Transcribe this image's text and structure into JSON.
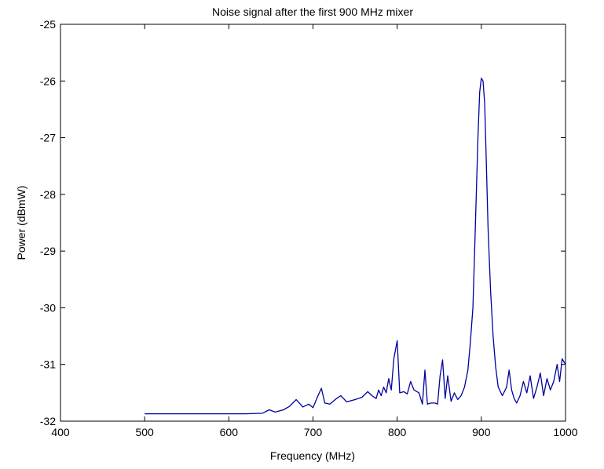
{
  "chart_data": {
    "type": "line",
    "title": "Noise signal after the first 900 MHz mixer",
    "xlabel": "Frequency (MHz)",
    "ylabel": "Power (dBmW)",
    "xlim": [
      400,
      1000
    ],
    "ylim": [
      -32,
      -25
    ],
    "xticks": [
      400,
      500,
      600,
      700,
      800,
      900,
      1000
    ],
    "yticks": [
      -32,
      -31,
      -30,
      -29,
      -28,
      -27,
      -26,
      -25
    ],
    "xtick_labels": [
      "400",
      "500",
      "600",
      "700",
      "800",
      "900",
      "1000"
    ],
    "ytick_labels": [
      "-32",
      "-31",
      "-30",
      "-29",
      "-28",
      "-27",
      "-26",
      "-25"
    ],
    "grid": false,
    "line_color": "#0000a0",
    "series": [
      {
        "x": [
          500,
          560,
          620,
          640,
          648,
          655,
          665,
          672,
          680,
          688,
          695,
          700,
          706,
          710,
          714,
          720,
          728,
          733,
          740,
          750,
          758,
          765,
          770,
          775,
          778,
          781,
          784,
          787,
          790,
          793,
          796,
          800,
          803,
          808,
          812,
          816,
          820,
          826,
          830,
          833,
          836,
          840,
          845,
          848,
          851,
          854,
          857,
          860,
          864,
          868,
          872,
          876,
          880,
          884,
          887,
          890,
          892,
          894,
          896,
          898,
          900,
          902,
          904,
          906,
          908,
          911,
          914,
          917,
          920,
          925,
          930,
          933,
          936,
          939,
          942,
          946,
          950,
          954,
          958,
          962,
          966,
          970,
          974,
          978,
          982,
          986,
          990,
          993,
          996,
          1000
        ],
        "y": [
          -31.87,
          -31.87,
          -31.87,
          -31.86,
          -31.8,
          -31.84,
          -31.8,
          -31.74,
          -31.62,
          -31.75,
          -31.7,
          -31.76,
          -31.55,
          -31.42,
          -31.68,
          -31.7,
          -31.6,
          -31.55,
          -31.66,
          -31.62,
          -31.58,
          -31.48,
          -31.55,
          -31.6,
          -31.45,
          -31.55,
          -31.4,
          -31.5,
          -31.25,
          -31.45,
          -30.9,
          -30.58,
          -31.5,
          -31.48,
          -31.52,
          -31.3,
          -31.45,
          -31.5,
          -31.7,
          -31.1,
          -31.7,
          -31.68,
          -31.68,
          -31.7,
          -31.2,
          -30.92,
          -31.6,
          -31.2,
          -31.65,
          -31.5,
          -31.62,
          -31.55,
          -31.4,
          -31.1,
          -30.6,
          -30.0,
          -29.0,
          -28.0,
          -27.0,
          -26.2,
          -25.95,
          -26.0,
          -26.4,
          -27.5,
          -28.6,
          -29.7,
          -30.5,
          -31.05,
          -31.4,
          -31.55,
          -31.4,
          -31.1,
          -31.45,
          -31.6,
          -31.68,
          -31.55,
          -31.3,
          -31.5,
          -31.2,
          -31.6,
          -31.4,
          -31.15,
          -31.55,
          -31.25,
          -31.45,
          -31.3,
          -31.0,
          -31.3,
          -30.9,
          -31.0
        ]
      }
    ]
  }
}
